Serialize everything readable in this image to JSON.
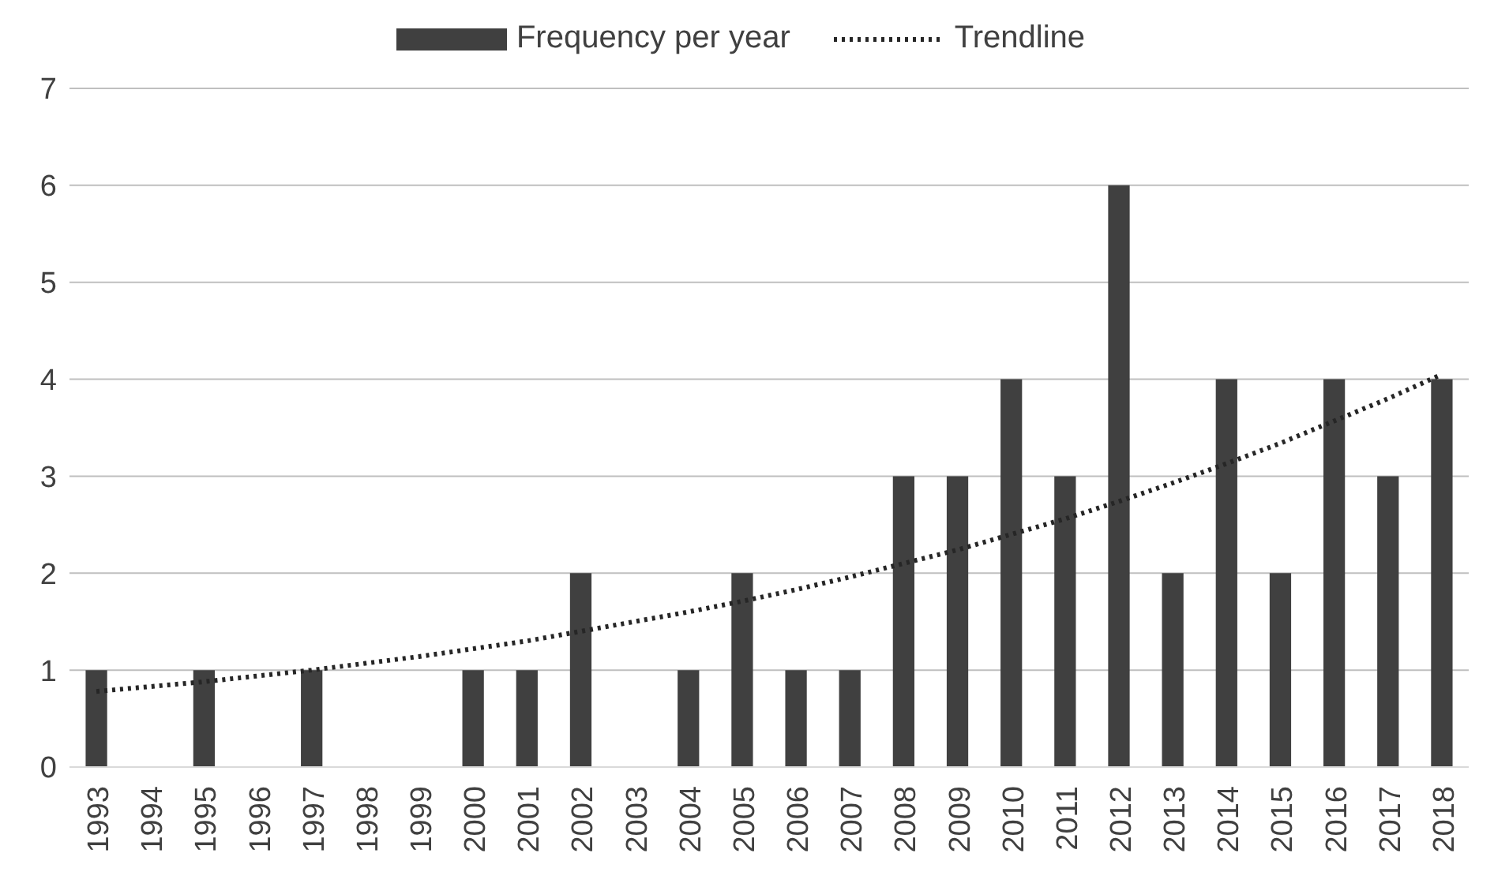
{
  "chart_data": {
    "type": "bar",
    "categories": [
      "1993",
      "1994",
      "1995",
      "1996",
      "1997",
      "1998",
      "1999",
      "2000",
      "2001",
      "2002",
      "2003",
      "2004",
      "2005",
      "2006",
      "2007",
      "2008",
      "2009",
      "2010",
      "2011",
      "2012",
      "2013",
      "2014",
      "2015",
      "2016",
      "2017",
      "2018"
    ],
    "series": [
      {
        "name": "Frequency per year",
        "color": "#404040",
        "values": [
          1,
          0,
          1,
          0,
          1,
          0,
          0,
          1,
          1,
          2,
          0,
          1,
          2,
          1,
          1,
          3,
          3,
          4,
          3,
          6,
          2,
          4,
          2,
          4,
          3,
          4
        ]
      },
      {
        "name": "Trendline",
        "type": "line",
        "color": "#262626",
        "line_style": "dotted",
        "values": [
          0.78,
          0.83,
          0.88,
          0.94,
          1.0,
          1.07,
          1.14,
          1.22,
          1.3,
          1.4,
          1.5,
          1.6,
          1.71,
          1.83,
          1.96,
          2.1,
          2.24,
          2.4,
          2.56,
          2.74,
          2.93,
          3.13,
          3.34,
          3.57,
          3.8,
          4.05
        ]
      }
    ],
    "ylim": [
      0,
      7
    ],
    "yticks": [
      0,
      1,
      2,
      3,
      4,
      5,
      6,
      7
    ],
    "grid": "y",
    "legend": "top",
    "marker": "none"
  }
}
